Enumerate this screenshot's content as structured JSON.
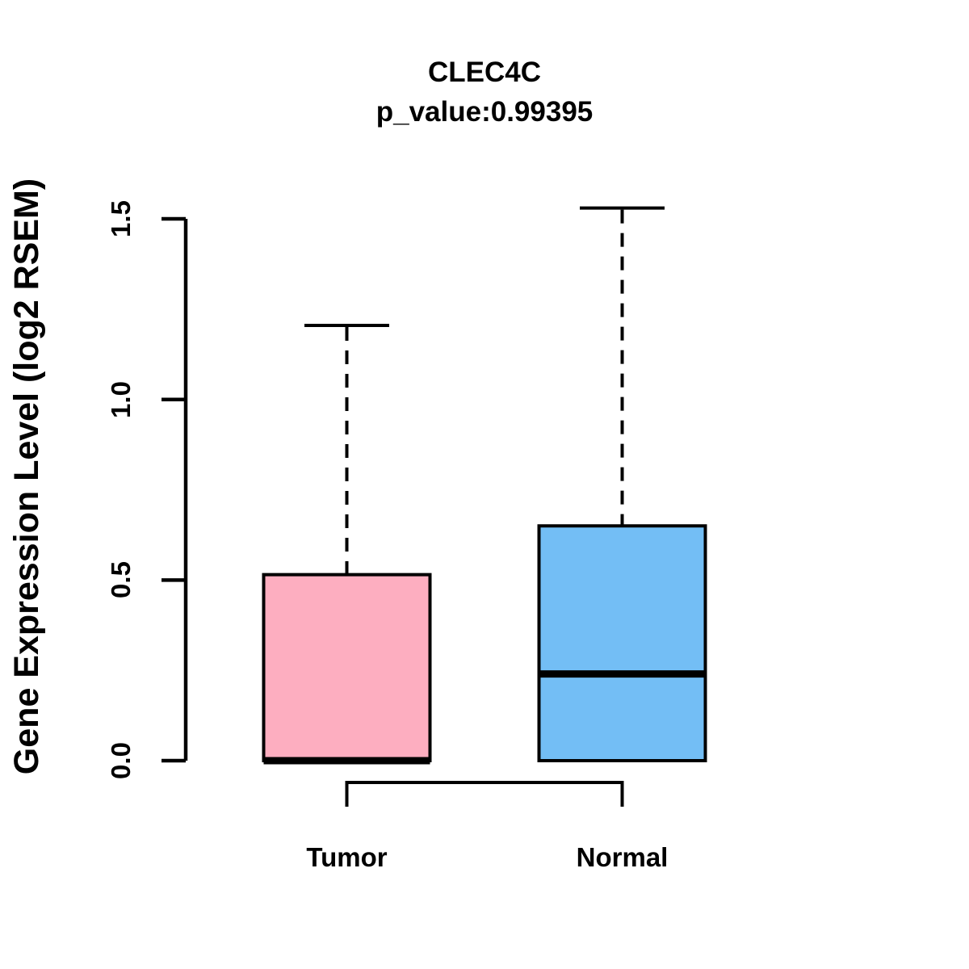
{
  "chart_data": {
    "type": "boxplot",
    "title": "CLEC4C",
    "subtitle": "p_value:0.99395",
    "p_value": 0.99395,
    "ylabel": "Gene Expression Level (log2 RSEM)",
    "xlabel": "",
    "categories": [
      "Tumor",
      "Normal"
    ],
    "yticks": [
      0.0,
      0.5,
      1.0,
      1.5
    ],
    "ytick_labels": [
      "0.0",
      "0.5",
      "1.0",
      "1.5"
    ],
    "ylim": [
      0.0,
      1.55
    ],
    "grid": false,
    "legend": "none",
    "series": [
      {
        "name": "Tumor",
        "color": "#FDAEC0",
        "whisker_low": 0.0,
        "q1": 0.0,
        "median": 0.0,
        "q3": 0.515,
        "whisker_high": 1.205
      },
      {
        "name": "Normal",
        "color": "#73BEF5",
        "whisker_low": 0.0,
        "q1": 0.0,
        "median": 0.24,
        "q3": 0.65,
        "whisker_high": 1.53
      }
    ],
    "comparison_bracket": {
      "from": "Tumor",
      "to": "Normal"
    },
    "colors": {
      "axis": "#000000",
      "text": "#000000",
      "background": "#ffffff"
    }
  }
}
